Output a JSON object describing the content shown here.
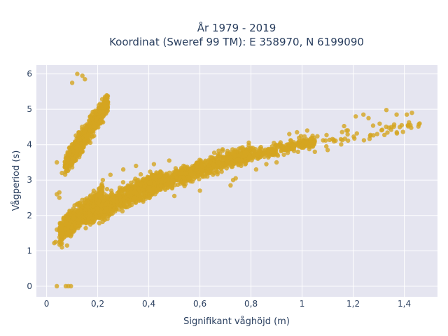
{
  "chart_data": {
    "type": "scatter",
    "title_line1": "År 1979 - 2019",
    "title_line2": "Koordinat (Sweref 99 TM): E 358970, N 6199090",
    "xlabel": "Signifikant våghöjd (m)",
    "ylabel": "Vågperiod (s)",
    "xlim": [
      -0.04,
      1.53
    ],
    "ylim": [
      -0.3,
      6.25
    ],
    "x_ticks": [
      0,
      0.2,
      0.4,
      0.6,
      0.8,
      1,
      1.2,
      1.4
    ],
    "x_tick_labels": [
      "0",
      "0,2",
      "0,4",
      "0,6",
      "0,8",
      "1",
      "1,2",
      "1,4"
    ],
    "y_ticks": [
      0,
      1,
      2,
      3,
      4,
      5,
      6
    ],
    "y_tick_labels": [
      "0",
      "1",
      "2",
      "3",
      "4",
      "5",
      "6"
    ],
    "grid": true,
    "colors": {
      "marker": "#d4a520",
      "plot_bg": "#e5e5f0",
      "grid": "#ffffff",
      "text": "#2a3f5f"
    },
    "series": [
      {
        "clusters": [
          {
            "x_range": [
              0.05,
              0.22
            ],
            "y_center_start": 1.5,
            "y_center_end": 2.55,
            "y_spread": 0.45,
            "count": 700
          },
          {
            "x_range": [
              0.15,
              0.45
            ],
            "y_center_start": 2.0,
            "y_center_end": 3.0,
            "y_spread": 0.45,
            "count": 900
          },
          {
            "x_range": [
              0.4,
              0.8
            ],
            "y_center_start": 2.8,
            "y_center_end": 3.8,
            "y_spread": 0.35,
            "count": 700
          },
          {
            "x_range": [
              0.75,
              1.05
            ],
            "y_center_start": 3.6,
            "y_center_end": 4.1,
            "y_spread": 0.25,
            "count": 300
          },
          {
            "x_range": [
              1.0,
              1.46
            ],
            "y_center_start": 4.0,
            "y_center_end": 4.6,
            "y_spread": 0.3,
            "count": 60
          },
          {
            "x_range": [
              0.07,
              0.24
            ],
            "y_center_start": 3.4,
            "y_center_end": 5.2,
            "y_spread": 0.45,
            "count": 600
          }
        ],
        "points": [
          [
            0.04,
            0.0
          ],
          [
            0.075,
            0.0
          ],
          [
            0.085,
            0.0
          ],
          [
            0.095,
            0.0
          ],
          [
            0.03,
            1.22
          ],
          [
            0.035,
            1.25
          ],
          [
            0.04,
            1.6
          ],
          [
            0.06,
            1.1
          ],
          [
            0.08,
            1.15
          ],
          [
            0.12,
            6.0
          ],
          [
            0.15,
            5.85
          ],
          [
            0.14,
            5.95
          ],
          [
            0.1,
            5.75
          ],
          [
            0.04,
            3.5
          ],
          [
            0.05,
            2.65
          ],
          [
            0.04,
            2.6
          ],
          [
            0.05,
            2.5
          ],
          [
            0.06,
            3.2
          ],
          [
            1.46,
            4.6
          ],
          [
            1.43,
            4.9
          ],
          [
            1.41,
            4.85
          ],
          [
            1.33,
            4.98
          ],
          [
            1.37,
            4.85
          ],
          [
            1.35,
            4.5
          ],
          [
            1.39,
            4.55
          ],
          [
            1.21,
            4.8
          ],
          [
            1.24,
            4.85
          ],
          [
            1.26,
            4.75
          ],
          [
            0.72,
            2.85
          ],
          [
            0.73,
            3.0
          ],
          [
            0.74,
            3.05
          ],
          [
            0.6,
            2.7
          ],
          [
            0.5,
            2.55
          ],
          [
            0.82,
            3.3
          ],
          [
            0.9,
            3.5
          ],
          [
            0.86,
            3.45
          ],
          [
            1.05,
            3.8
          ],
          [
            1.1,
            3.85
          ],
          [
            0.98,
            4.35
          ],
          [
            1.02,
            4.4
          ],
          [
            0.95,
            4.3
          ],
          [
            0.3,
            3.3
          ],
          [
            0.35,
            3.4
          ],
          [
            0.22,
            3.0
          ],
          [
            0.25,
            3.15
          ],
          [
            0.42,
            3.45
          ],
          [
            0.48,
            3.55
          ]
        ]
      }
    ]
  }
}
